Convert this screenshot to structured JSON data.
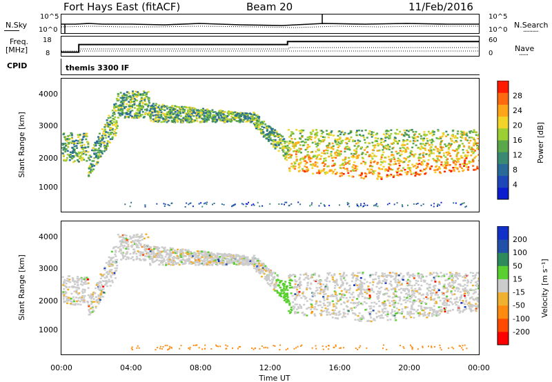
{
  "header": {
    "title": "Fort Hays East (fitACF)",
    "beam": "Beam 20",
    "date": "11/Feb/2016"
  },
  "top_panels": {
    "nsky_label": "N.Sky",
    "nsearch_label": "N.Search",
    "nsearch_legend": "..........",
    "freq_label_1": "Freq.",
    "freq_label_2": "[MHz]",
    "nave_label": "Nave",
    "nave_legend": "......",
    "cpid_label": "CPID",
    "cpid_value": "themis 3300 IF",
    "nsky_ticks": [
      "10^5",
      "10^0"
    ],
    "nsearch_ticks": [
      "10^5",
      "10^0"
    ],
    "freq_ticks": [
      "18",
      "8"
    ],
    "nave_ticks": [
      "60",
      "0"
    ],
    "freq_series": [
      {
        "x": 0.0,
        "y": 10
      },
      {
        "x": 1.0,
        "y": 10
      },
      {
        "x": 1.0,
        "y": 15
      },
      {
        "x": 13.0,
        "y": 15
      },
      {
        "x": 13.0,
        "y": 17
      },
      {
        "x": 24.0,
        "y": 17
      }
    ]
  },
  "chart_data": [
    {
      "type": "heatmap",
      "title": "",
      "xlabel": "",
      "ylabel": "Slant Range [km]",
      "ylim": [
        0,
        4500
      ],
      "xlim": [
        0,
        24
      ],
      "y_ticks": [
        "1000",
        "2000",
        "3000",
        "4000"
      ],
      "colorbar_label": "Power [dB]",
      "colorbar_ticks": [
        "28",
        "24",
        "20",
        "16",
        "12",
        "8",
        "4"
      ],
      "colorbar_colors": [
        "#0a1ecf",
        "#1d46b8",
        "#2a6a98",
        "#3a8a73",
        "#5aa84a",
        "#9ccf34",
        "#f2d42a",
        "#ffa51a",
        "#ff6a10",
        "#ff1a00"
      ]
    },
    {
      "type": "heatmap",
      "title": "",
      "xlabel": "Time UT",
      "ylabel": "Slant Range [km]",
      "ylim": [
        0,
        4500
      ],
      "xlim": [
        0,
        24
      ],
      "y_ticks": [
        "1000",
        "2000",
        "3000",
        "4000"
      ],
      "x_ticks": [
        "00:00",
        "04:00",
        "08:00",
        "12:00",
        "16:00",
        "20:00",
        "00:00"
      ],
      "colorbar_label": "Velocity [m s⁻¹]",
      "colorbar_ticks": [
        "200",
        "100",
        "50",
        "15",
        "-15",
        "-50",
        "-100",
        "-200"
      ],
      "colorbar_colors": [
        "#1030c8",
        "#2250a8",
        "#2e8a5a",
        "#5ad030",
        "#cccccc",
        "#f0b030",
        "#ff8a10",
        "#ff4a00",
        "#ff0000"
      ]
    }
  ]
}
